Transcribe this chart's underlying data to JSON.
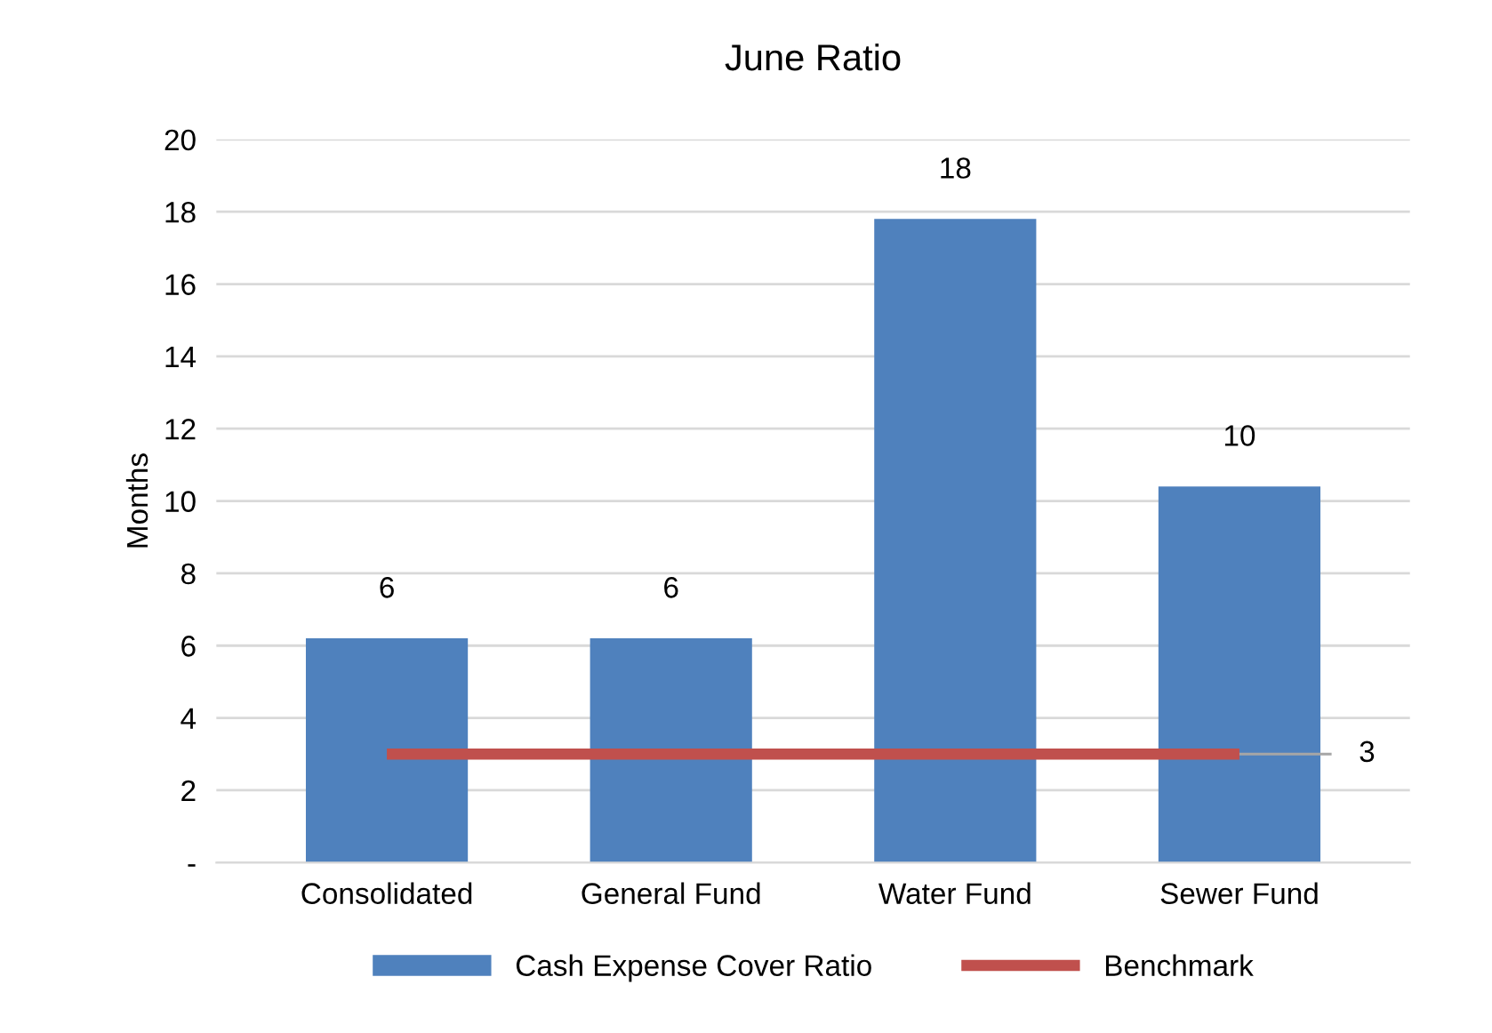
{
  "chart_data": {
    "type": "bar",
    "title": "June Ratio",
    "ylabel": "Months",
    "categories": [
      "Consolidated",
      "General Fund",
      "Water Fund",
      "Sewer Fund"
    ],
    "series": [
      {
        "name": "Cash Expense Cover Ratio",
        "color": "#4f81bd",
        "values": [
          6.2,
          6.2,
          17.8,
          10.4
        ],
        "value_labels": [
          "6",
          "6",
          "18",
          "10"
        ]
      },
      {
        "name": "Benchmark",
        "type": "line",
        "color": "#c0504d",
        "values": [
          3,
          3,
          3,
          3
        ],
        "value_labels": [
          null,
          null,
          null,
          "3"
        ]
      }
    ],
    "ylim": [
      0,
      20
    ],
    "yticks": [
      {
        "value": 0,
        "label": "-"
      },
      2,
      4,
      6,
      8,
      10,
      12,
      14,
      16,
      18,
      20
    ],
    "grid": "y",
    "legend": "bottom",
    "marker": "none",
    "line_style": "solid"
  }
}
